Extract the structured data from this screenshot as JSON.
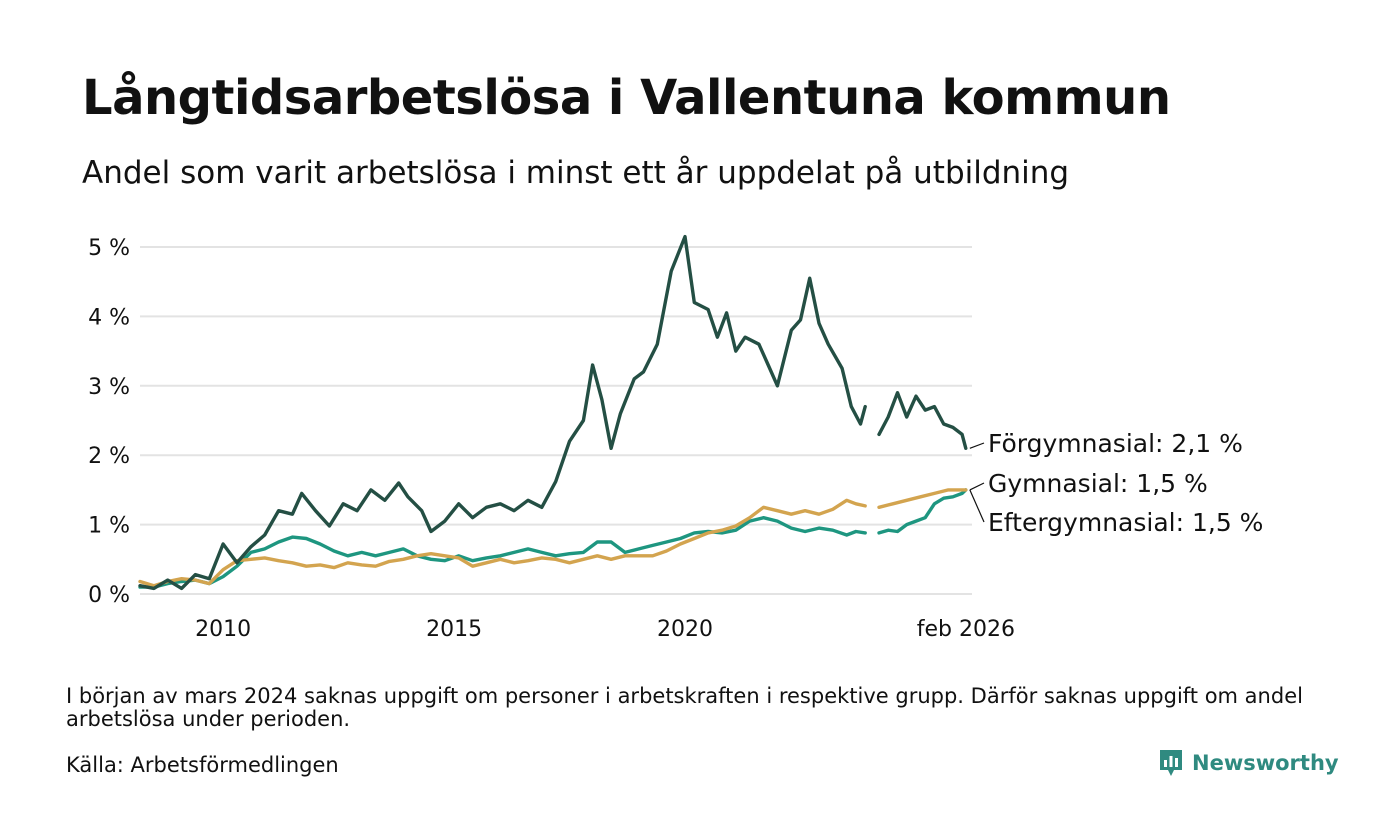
{
  "header": {
    "title": "Långtidsarbetslösa i Vallentuna kommun",
    "subtitle": "Andel som varit arbetslösa i minst ett år uppdelat på utbildning"
  },
  "footer": {
    "note": "I början av mars 2024 saknas uppgift om personer i arbetskraften i respektive grupp. Därför saknas uppgift om andel arbetslösa under perioden.",
    "source": "Källa: Arbetsförmedlingen",
    "brand": "Newsworthy"
  },
  "colors": {
    "forgymnasial": "#244f44",
    "gymnasial": "#d3a44f",
    "eftergymnasial": "#1e9680",
    "grid": "#e3e3e3",
    "brand": "#2f8a80"
  },
  "chart_data": {
    "type": "line",
    "title": "Långtidsarbetslösa i Vallentuna kommun",
    "xlabel": "",
    "ylabel": "",
    "ylim": [
      0,
      5
    ],
    "xlim": [
      2008.2,
      2026.17
    ],
    "y_ticks": [
      {
        "value": 0,
        "label": "0 %"
      },
      {
        "value": 1,
        "label": "1 %"
      },
      {
        "value": 2,
        "label": "2 %"
      },
      {
        "value": 3,
        "label": "3 %"
      },
      {
        "value": 4,
        "label": "4 %"
      },
      {
        "value": 5,
        "label": "5 %"
      }
    ],
    "x_ticks": [
      {
        "value": 2010,
        "label": "2010"
      },
      {
        "value": 2015,
        "label": "2015"
      },
      {
        "value": 2020,
        "label": "2020"
      },
      {
        "value": 2026.08,
        "label": "feb 2026"
      }
    ],
    "series": [
      {
        "name": "Förgymnasial",
        "end_label": "Förgymnasial: 2,1 %",
        "color_key": "forgymnasial",
        "segments": [
          [
            [
              2008.2,
              0.12
            ],
            [
              2008.5,
              0.08
            ],
            [
              2008.8,
              0.2
            ],
            [
              2009.1,
              0.08
            ],
            [
              2009.4,
              0.28
            ],
            [
              2009.7,
              0.22
            ],
            [
              2010.0,
              0.72
            ],
            [
              2010.3,
              0.45
            ],
            [
              2010.6,
              0.68
            ],
            [
              2010.9,
              0.85
            ],
            [
              2011.2,
              1.2
            ],
            [
              2011.5,
              1.15
            ],
            [
              2011.7,
              1.45
            ],
            [
              2012.0,
              1.2
            ],
            [
              2012.3,
              0.98
            ],
            [
              2012.6,
              1.3
            ],
            [
              2012.9,
              1.2
            ],
            [
              2013.2,
              1.5
            ],
            [
              2013.5,
              1.35
            ],
            [
              2013.8,
              1.6
            ],
            [
              2014.0,
              1.4
            ],
            [
              2014.3,
              1.2
            ],
            [
              2014.5,
              0.9
            ],
            [
              2014.8,
              1.05
            ],
            [
              2015.1,
              1.3
            ],
            [
              2015.4,
              1.1
            ],
            [
              2015.7,
              1.25
            ],
            [
              2016.0,
              1.3
            ],
            [
              2016.3,
              1.2
            ],
            [
              2016.6,
              1.35
            ],
            [
              2016.9,
              1.25
            ],
            [
              2017.2,
              1.62
            ],
            [
              2017.5,
              2.2
            ],
            [
              2017.8,
              2.5
            ],
            [
              2018.0,
              3.3
            ],
            [
              2018.2,
              2.8
            ],
            [
              2018.4,
              2.1
            ],
            [
              2018.6,
              2.6
            ],
            [
              2018.9,
              3.1
            ],
            [
              2019.1,
              3.2
            ],
            [
              2019.4,
              3.6
            ],
            [
              2019.7,
              4.65
            ],
            [
              2020.0,
              5.15
            ],
            [
              2020.2,
              4.2
            ],
            [
              2020.5,
              4.1
            ],
            [
              2020.7,
              3.7
            ],
            [
              2020.9,
              4.05
            ],
            [
              2021.1,
              3.5
            ],
            [
              2021.3,
              3.7
            ],
            [
              2021.6,
              3.6
            ],
            [
              2021.8,
              3.3
            ],
            [
              2022.0,
              3.0
            ],
            [
              2022.3,
              3.8
            ],
            [
              2022.5,
              3.95
            ],
            [
              2022.7,
              4.55
            ],
            [
              2022.9,
              3.9
            ],
            [
              2023.1,
              3.6
            ],
            [
              2023.4,
              3.25
            ],
            [
              2023.6,
              2.7
            ],
            [
              2023.8,
              2.45
            ],
            [
              2023.9,
              2.7
            ]
          ],
          [
            [
              2024.2,
              2.3
            ],
            [
              2024.4,
              2.55
            ],
            [
              2024.6,
              2.9
            ],
            [
              2024.8,
              2.55
            ],
            [
              2025.0,
              2.85
            ],
            [
              2025.2,
              2.65
            ],
            [
              2025.4,
              2.7
            ],
            [
              2025.6,
              2.45
            ],
            [
              2025.8,
              2.4
            ],
            [
              2026.0,
              2.3
            ],
            [
              2026.08,
              2.1
            ]
          ]
        ]
      },
      {
        "name": "Gymnasial",
        "end_label": "Gymnasial: 1,5 %",
        "color_key": "gymnasial",
        "segments": [
          [
            [
              2008.2,
              0.18
            ],
            [
              2008.5,
              0.12
            ],
            [
              2008.8,
              0.18
            ],
            [
              2009.1,
              0.22
            ],
            [
              2009.4,
              0.2
            ],
            [
              2009.7,
              0.15
            ],
            [
              2010.0,
              0.35
            ],
            [
              2010.3,
              0.48
            ],
            [
              2010.6,
              0.5
            ],
            [
              2010.9,
              0.52
            ],
            [
              2011.2,
              0.48
            ],
            [
              2011.5,
              0.45
            ],
            [
              2011.8,
              0.4
            ],
            [
              2012.1,
              0.42
            ],
            [
              2012.4,
              0.38
            ],
            [
              2012.7,
              0.45
            ],
            [
              2013.0,
              0.42
            ],
            [
              2013.3,
              0.4
            ],
            [
              2013.6,
              0.47
            ],
            [
              2013.9,
              0.5
            ],
            [
              2014.2,
              0.55
            ],
            [
              2014.5,
              0.58
            ],
            [
              2014.8,
              0.55
            ],
            [
              2015.1,
              0.52
            ],
            [
              2015.4,
              0.4
            ],
            [
              2015.7,
              0.45
            ],
            [
              2016.0,
              0.5
            ],
            [
              2016.3,
              0.45
            ],
            [
              2016.6,
              0.48
            ],
            [
              2016.9,
              0.52
            ],
            [
              2017.2,
              0.5
            ],
            [
              2017.5,
              0.45
            ],
            [
              2017.8,
              0.5
            ],
            [
              2018.1,
              0.55
            ],
            [
              2018.4,
              0.5
            ],
            [
              2018.7,
              0.55
            ],
            [
              2019.0,
              0.55
            ],
            [
              2019.3,
              0.55
            ],
            [
              2019.6,
              0.62
            ],
            [
              2019.9,
              0.72
            ],
            [
              2020.2,
              0.8
            ],
            [
              2020.5,
              0.88
            ],
            [
              2020.8,
              0.92
            ],
            [
              2021.1,
              0.98
            ],
            [
              2021.4,
              1.1
            ],
            [
              2021.7,
              1.25
            ],
            [
              2022.0,
              1.2
            ],
            [
              2022.3,
              1.15
            ],
            [
              2022.6,
              1.2
            ],
            [
              2022.9,
              1.15
            ],
            [
              2023.2,
              1.22
            ],
            [
              2023.5,
              1.35
            ],
            [
              2023.7,
              1.3
            ],
            [
              2023.9,
              1.27
            ]
          ],
          [
            [
              2024.2,
              1.25
            ],
            [
              2024.5,
              1.3
            ],
            [
              2024.8,
              1.35
            ],
            [
              2025.1,
              1.4
            ],
            [
              2025.4,
              1.45
            ],
            [
              2025.7,
              1.5
            ],
            [
              2026.08,
              1.5
            ]
          ]
        ]
      },
      {
        "name": "Eftergymnasial",
        "end_label": "Eftergymnasial: 1,5 %",
        "color_key": "eftergymnasial",
        "segments": [
          [
            [
              2008.2,
              0.1
            ],
            [
              2008.5,
              0.1
            ],
            [
              2008.8,
              0.15
            ],
            [
              2009.1,
              0.18
            ],
            [
              2009.4,
              0.2
            ],
            [
              2009.7,
              0.15
            ],
            [
              2010.0,
              0.25
            ],
            [
              2010.3,
              0.4
            ],
            [
              2010.6,
              0.6
            ],
            [
              2010.9,
              0.65
            ],
            [
              2011.2,
              0.75
            ],
            [
              2011.5,
              0.82
            ],
            [
              2011.8,
              0.8
            ],
            [
              2012.1,
              0.72
            ],
            [
              2012.4,
              0.62
            ],
            [
              2012.7,
              0.55
            ],
            [
              2013.0,
              0.6
            ],
            [
              2013.3,
              0.55
            ],
            [
              2013.6,
              0.6
            ],
            [
              2013.9,
              0.65
            ],
            [
              2014.2,
              0.55
            ],
            [
              2014.5,
              0.5
            ],
            [
              2014.8,
              0.48
            ],
            [
              2015.1,
              0.55
            ],
            [
              2015.4,
              0.48
            ],
            [
              2015.7,
              0.52
            ],
            [
              2016.0,
              0.55
            ],
            [
              2016.3,
              0.6
            ],
            [
              2016.6,
              0.65
            ],
            [
              2016.9,
              0.6
            ],
            [
              2017.2,
              0.55
            ],
            [
              2017.5,
              0.58
            ],
            [
              2017.8,
              0.6
            ],
            [
              2018.1,
              0.75
            ],
            [
              2018.4,
              0.75
            ],
            [
              2018.7,
              0.6
            ],
            [
              2019.0,
              0.65
            ],
            [
              2019.3,
              0.7
            ],
            [
              2019.6,
              0.75
            ],
            [
              2019.9,
              0.8
            ],
            [
              2020.2,
              0.88
            ],
            [
              2020.5,
              0.9
            ],
            [
              2020.8,
              0.88
            ],
            [
              2021.1,
              0.92
            ],
            [
              2021.4,
              1.05
            ],
            [
              2021.7,
              1.1
            ],
            [
              2022.0,
              1.05
            ],
            [
              2022.3,
              0.95
            ],
            [
              2022.6,
              0.9
            ],
            [
              2022.9,
              0.95
            ],
            [
              2023.2,
              0.92
            ],
            [
              2023.5,
              0.85
            ],
            [
              2023.7,
              0.9
            ],
            [
              2023.9,
              0.88
            ]
          ],
          [
            [
              2024.2,
              0.88
            ],
            [
              2024.4,
              0.92
            ],
            [
              2024.6,
              0.9
            ],
            [
              2024.8,
              1.0
            ],
            [
              2025.0,
              1.05
            ],
            [
              2025.2,
              1.1
            ],
            [
              2025.4,
              1.3
            ],
            [
              2025.6,
              1.38
            ],
            [
              2025.8,
              1.4
            ],
            [
              2026.0,
              1.45
            ],
            [
              2026.08,
              1.5
            ]
          ]
        ]
      }
    ]
  }
}
